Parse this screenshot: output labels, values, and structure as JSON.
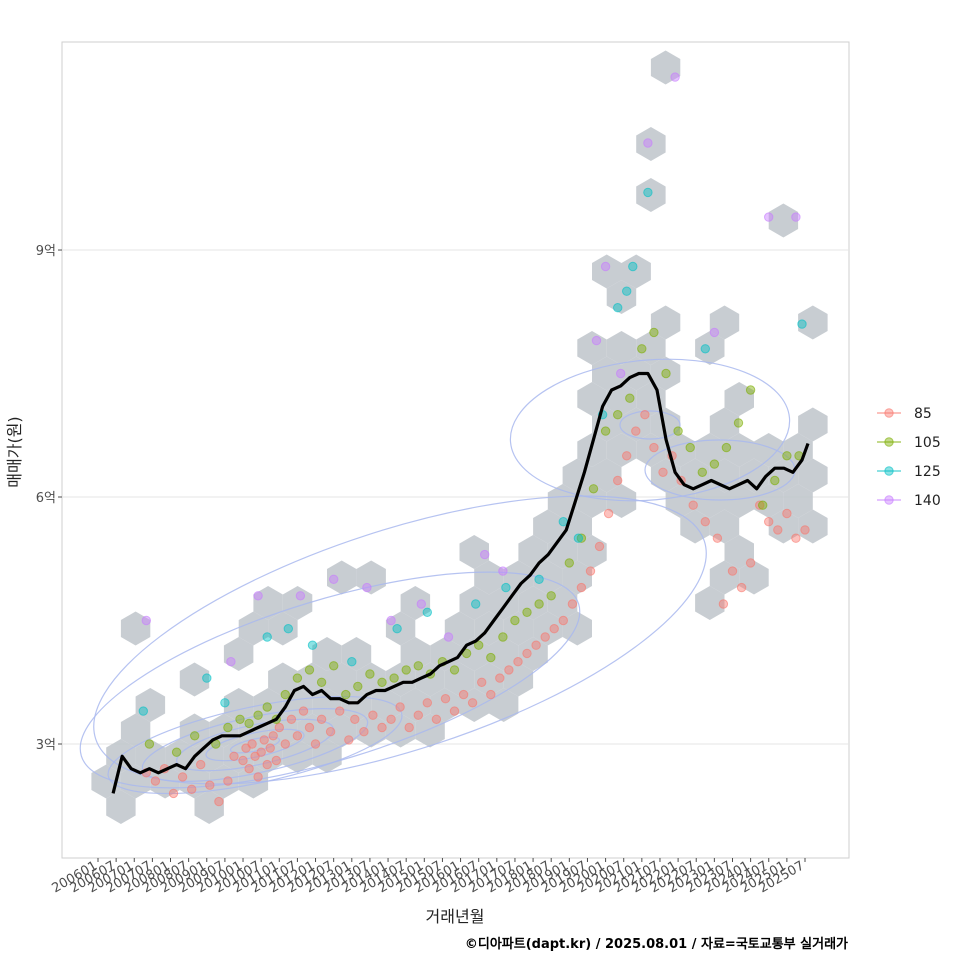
{
  "chart_data": {
    "type": "scatter",
    "xlabel": "거래년월",
    "ylabel": "매매가(원)",
    "caption": "©디아파트(dapt.kr) / 2025.08.01 / 자료=국토교통부 실거래가",
    "x_range": [
      "2006-01",
      "2025-12"
    ],
    "y_range_eok": [
      1.7,
      11.5
    ],
    "y_ticks": [
      {
        "value": 3,
        "label": "3억"
      },
      {
        "value": 6,
        "label": "6억"
      },
      {
        "value": 9,
        "label": "9억"
      }
    ],
    "x_ticks": [
      "200601",
      "200607",
      "200701",
      "200707",
      "200801",
      "200807",
      "200901",
      "200907",
      "201001",
      "201007",
      "201101",
      "201107",
      "201201",
      "201207",
      "201301",
      "201307",
      "201401",
      "201407",
      "201501",
      "201507",
      "201601",
      "201607",
      "201701",
      "201707",
      "201801",
      "201807",
      "201901",
      "201907",
      "202001",
      "202007",
      "202101",
      "202107",
      "202201",
      "202207",
      "202301",
      "202307",
      "202401",
      "202407",
      "202501",
      "202507"
    ],
    "grid": true,
    "legend": {
      "placement": "right",
      "title": ""
    },
    "colors": {
      "85": "#F8766D",
      "105": "#7CAE00",
      "125": "#00BFC4",
      "140": "#C77CFF",
      "trend": "#000000",
      "hex": "#BEC4CA",
      "contour": "#A9B9EE"
    },
    "series": [
      {
        "name": "85",
        "points": [
          [
            "2007-05",
            2.65
          ],
          [
            "2007-08",
            2.55
          ],
          [
            "2007-11",
            2.7
          ],
          [
            "2008-02",
            2.4
          ],
          [
            "2008-05",
            2.6
          ],
          [
            "2008-08",
            2.45
          ],
          [
            "2008-11",
            2.75
          ],
          [
            "2009-02",
            2.5
          ],
          [
            "2009-05",
            2.3
          ],
          [
            "2009-08",
            2.55
          ],
          [
            "2009-10",
            2.85
          ],
          [
            "2010-01",
            2.8
          ],
          [
            "2010-02",
            2.95
          ],
          [
            "2010-03",
            2.7
          ],
          [
            "2010-04",
            3.0
          ],
          [
            "2010-05",
            2.85
          ],
          [
            "2010-06",
            2.6
          ],
          [
            "2010-07",
            2.9
          ],
          [
            "2010-08",
            3.05
          ],
          [
            "2010-09",
            2.75
          ],
          [
            "2010-10",
            2.95
          ],
          [
            "2010-11",
            3.1
          ],
          [
            "2010-12",
            2.8
          ],
          [
            "2011-01",
            3.2
          ],
          [
            "2011-03",
            3.0
          ],
          [
            "2011-05",
            3.3
          ],
          [
            "2011-07",
            3.1
          ],
          [
            "2011-09",
            3.4
          ],
          [
            "2011-11",
            3.2
          ],
          [
            "2012-01",
            3.0
          ],
          [
            "2012-03",
            3.3
          ],
          [
            "2012-06",
            3.15
          ],
          [
            "2012-09",
            3.4
          ],
          [
            "2012-12",
            3.05
          ],
          [
            "2013-02",
            3.3
          ],
          [
            "2013-05",
            3.15
          ],
          [
            "2013-08",
            3.35
          ],
          [
            "2013-11",
            3.2
          ],
          [
            "2014-02",
            3.3
          ],
          [
            "2014-05",
            3.45
          ],
          [
            "2014-08",
            3.2
          ],
          [
            "2014-11",
            3.35
          ],
          [
            "2015-02",
            3.5
          ],
          [
            "2015-05",
            3.3
          ],
          [
            "2015-08",
            3.55
          ],
          [
            "2015-11",
            3.4
          ],
          [
            "2016-02",
            3.6
          ],
          [
            "2016-05",
            3.5
          ],
          [
            "2016-08",
            3.75
          ],
          [
            "2016-11",
            3.6
          ],
          [
            "2017-02",
            3.8
          ],
          [
            "2017-05",
            3.9
          ],
          [
            "2017-08",
            4.0
          ],
          [
            "2017-11",
            4.1
          ],
          [
            "2018-02",
            4.2
          ],
          [
            "2018-05",
            4.3
          ],
          [
            "2018-08",
            4.4
          ],
          [
            "2018-11",
            4.5
          ],
          [
            "2019-02",
            4.7
          ],
          [
            "2019-05",
            4.9
          ],
          [
            "2019-08",
            5.1
          ],
          [
            "2019-11",
            5.4
          ],
          [
            "2020-02",
            5.8
          ],
          [
            "2020-05",
            6.2
          ],
          [
            "2020-08",
            6.5
          ],
          [
            "2020-11",
            6.8
          ],
          [
            "2021-02",
            7.0
          ],
          [
            "2021-05",
            6.6
          ],
          [
            "2021-08",
            6.3
          ],
          [
            "2021-11",
            6.5
          ],
          [
            "2022-02",
            6.2
          ],
          [
            "2022-06",
            5.9
          ],
          [
            "2022-10",
            5.7
          ],
          [
            "2023-02",
            5.5
          ],
          [
            "2023-04",
            4.7
          ],
          [
            "2023-07",
            5.1
          ],
          [
            "2023-10",
            4.9
          ],
          [
            "2024-01",
            5.2
          ],
          [
            "2024-04",
            5.9
          ],
          [
            "2024-07",
            5.7
          ],
          [
            "2024-10",
            5.6
          ],
          [
            "2025-01",
            5.8
          ],
          [
            "2025-04",
            5.5
          ],
          [
            "2025-07",
            5.6
          ]
        ]
      },
      {
        "name": "105",
        "points": [
          [
            "2007-06",
            3.0
          ],
          [
            "2008-03",
            2.9
          ],
          [
            "2008-09",
            3.1
          ],
          [
            "2009-04",
            3.0
          ],
          [
            "2009-08",
            3.2
          ],
          [
            "2009-12",
            3.3
          ],
          [
            "2010-03",
            3.25
          ],
          [
            "2010-06",
            3.35
          ],
          [
            "2010-09",
            3.45
          ],
          [
            "2010-12",
            3.3
          ],
          [
            "2011-03",
            3.6
          ],
          [
            "2011-07",
            3.8
          ],
          [
            "2011-11",
            3.9
          ],
          [
            "2012-03",
            3.75
          ],
          [
            "2012-07",
            3.95
          ],
          [
            "2012-11",
            3.6
          ],
          [
            "2013-03",
            3.7
          ],
          [
            "2013-07",
            3.85
          ],
          [
            "2013-11",
            3.75
          ],
          [
            "2014-03",
            3.8
          ],
          [
            "2014-07",
            3.9
          ],
          [
            "2014-11",
            3.95
          ],
          [
            "2015-03",
            3.85
          ],
          [
            "2015-07",
            4.0
          ],
          [
            "2015-11",
            3.9
          ],
          [
            "2016-03",
            4.1
          ],
          [
            "2016-07",
            4.2
          ],
          [
            "2016-11",
            4.05
          ],
          [
            "2017-03",
            4.3
          ],
          [
            "2017-07",
            4.5
          ],
          [
            "2017-11",
            4.6
          ],
          [
            "2018-03",
            4.7
          ],
          [
            "2018-07",
            4.8
          ],
          [
            "2019-01",
            5.2
          ],
          [
            "2019-05",
            5.5
          ],
          [
            "2019-09",
            6.1
          ],
          [
            "2020-01",
            6.8
          ],
          [
            "2020-05",
            7.0
          ],
          [
            "2020-09",
            7.2
          ],
          [
            "2021-01",
            7.8
          ],
          [
            "2021-05",
            8.0
          ],
          [
            "2021-09",
            7.5
          ],
          [
            "2022-01",
            6.8
          ],
          [
            "2022-05",
            6.6
          ],
          [
            "2022-09",
            6.3
          ],
          [
            "2023-01",
            6.4
          ],
          [
            "2023-05",
            6.6
          ],
          [
            "2023-09",
            6.9
          ],
          [
            "2024-01",
            7.3
          ],
          [
            "2024-05",
            5.9
          ],
          [
            "2024-09",
            6.2
          ],
          [
            "2025-01",
            6.5
          ],
          [
            "2025-05",
            6.5
          ]
        ]
      },
      {
        "name": "125",
        "points": [
          [
            "2007-04",
            3.4
          ],
          [
            "2009-01",
            3.8
          ],
          [
            "2009-07",
            3.5
          ],
          [
            "2010-09",
            4.3
          ],
          [
            "2011-04",
            4.4
          ],
          [
            "2011-12",
            4.2
          ],
          [
            "2013-01",
            4.0
          ],
          [
            "2014-04",
            4.4
          ],
          [
            "2015-02",
            4.6
          ],
          [
            "2016-06",
            4.7
          ],
          [
            "2017-04",
            4.9
          ],
          [
            "2018-03",
            5.0
          ],
          [
            "2018-11",
            5.7
          ],
          [
            "2019-04",
            5.5
          ],
          [
            "2019-12",
            7.0
          ],
          [
            "2020-05",
            8.3
          ],
          [
            "2020-08",
            8.5
          ],
          [
            "2020-10",
            8.8
          ],
          [
            "2021-03",
            9.7
          ],
          [
            "2022-10",
            7.8
          ],
          [
            "2025-06",
            8.1
          ]
        ]
      },
      {
        "name": "140",
        "points": [
          [
            "2007-05",
            4.5
          ],
          [
            "2009-09",
            4.0
          ],
          [
            "2010-06",
            4.8
          ],
          [
            "2011-08",
            4.8
          ],
          [
            "2012-07",
            5.0
          ],
          [
            "2013-06",
            4.9
          ],
          [
            "2014-02",
            4.5
          ],
          [
            "2014-12",
            4.7
          ],
          [
            "2015-09",
            4.3
          ],
          [
            "2016-09",
            5.3
          ],
          [
            "2017-03",
            5.1
          ],
          [
            "2019-10",
            7.9
          ],
          [
            "2020-01",
            8.8
          ],
          [
            "2020-06",
            7.5
          ],
          [
            "2021-03",
            10.3
          ],
          [
            "2021-12",
            11.1
          ],
          [
            "2023-01",
            8.0
          ],
          [
            "2024-07",
            9.4
          ],
          [
            "2025-04",
            9.4
          ]
        ]
      }
    ],
    "trend": [
      [
        "2006-06",
        2.4
      ],
      [
        "2006-09",
        2.85
      ],
      [
        "2006-12",
        2.7
      ],
      [
        "2007-03",
        2.65
      ],
      [
        "2007-06",
        2.7
      ],
      [
        "2007-09",
        2.65
      ],
      [
        "2007-12",
        2.7
      ],
      [
        "2008-03",
        2.75
      ],
      [
        "2008-06",
        2.7
      ],
      [
        "2008-09",
        2.85
      ],
      [
        "2008-12",
        2.95
      ],
      [
        "2009-03",
        3.05
      ],
      [
        "2009-06",
        3.1
      ],
      [
        "2009-09",
        3.1
      ],
      [
        "2009-12",
        3.1
      ],
      [
        "2010-03",
        3.15
      ],
      [
        "2010-06",
        3.2
      ],
      [
        "2010-09",
        3.25
      ],
      [
        "2010-12",
        3.3
      ],
      [
        "2011-03",
        3.45
      ],
      [
        "2011-06",
        3.65
      ],
      [
        "2011-09",
        3.7
      ],
      [
        "2011-12",
        3.6
      ],
      [
        "2012-03",
        3.65
      ],
      [
        "2012-06",
        3.55
      ],
      [
        "2012-09",
        3.55
      ],
      [
        "2012-12",
        3.5
      ],
      [
        "2013-03",
        3.5
      ],
      [
        "2013-06",
        3.6
      ],
      [
        "2013-09",
        3.65
      ],
      [
        "2013-12",
        3.65
      ],
      [
        "2014-03",
        3.7
      ],
      [
        "2014-06",
        3.75
      ],
      [
        "2014-09",
        3.75
      ],
      [
        "2014-12",
        3.8
      ],
      [
        "2015-03",
        3.85
      ],
      [
        "2015-06",
        3.95
      ],
      [
        "2015-09",
        4.0
      ],
      [
        "2015-12",
        4.05
      ],
      [
        "2016-03",
        4.2
      ],
      [
        "2016-06",
        4.25
      ],
      [
        "2016-09",
        4.35
      ],
      [
        "2016-12",
        4.5
      ],
      [
        "2017-03",
        4.65
      ],
      [
        "2017-06",
        4.8
      ],
      [
        "2017-09",
        4.95
      ],
      [
        "2017-12",
        5.05
      ],
      [
        "2018-03",
        5.2
      ],
      [
        "2018-06",
        5.3
      ],
      [
        "2018-09",
        5.45
      ],
      [
        "2018-12",
        5.6
      ],
      [
        "2019-03",
        5.95
      ],
      [
        "2019-06",
        6.3
      ],
      [
        "2019-09",
        6.7
      ],
      [
        "2019-12",
        7.1
      ],
      [
        "2020-03",
        7.3
      ],
      [
        "2020-06",
        7.35
      ],
      [
        "2020-09",
        7.45
      ],
      [
        "2020-12",
        7.5
      ],
      [
        "2021-03",
        7.5
      ],
      [
        "2021-06",
        7.3
      ],
      [
        "2021-09",
        6.7
      ],
      [
        "2021-12",
        6.3
      ],
      [
        "2022-03",
        6.15
      ],
      [
        "2022-06",
        6.1
      ],
      [
        "2022-09",
        6.15
      ],
      [
        "2022-12",
        6.2
      ],
      [
        "2023-03",
        6.15
      ],
      [
        "2023-06",
        6.1
      ],
      [
        "2023-09",
        6.15
      ],
      [
        "2023-12",
        6.2
      ],
      [
        "2024-03",
        6.1
      ],
      [
        "2024-06",
        6.25
      ],
      [
        "2024-09",
        6.35
      ],
      [
        "2024-12",
        6.35
      ],
      [
        "2025-03",
        6.3
      ],
      [
        "2025-06",
        6.45
      ],
      [
        "2025-08",
        6.65
      ]
    ]
  }
}
